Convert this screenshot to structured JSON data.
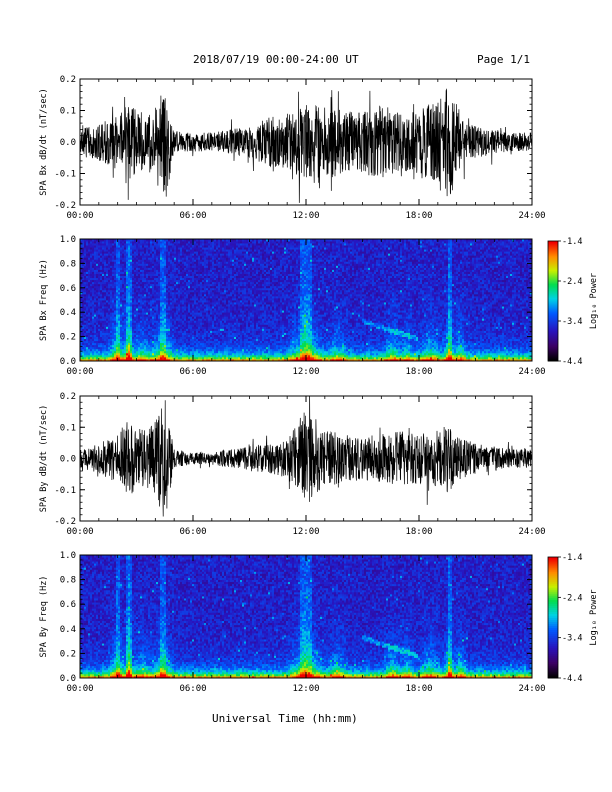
{
  "header": {
    "title": "2018/07/19  00:00-24:00 UT",
    "page": "Page 1/1"
  },
  "footer": {
    "xlabel": "Universal Time (hh:mm)"
  },
  "colorbar": {
    "label": "Log₁₀ Power",
    "ticks": [
      "-1.4",
      "-2.4",
      "-3.4",
      "-4.4"
    ],
    "range": [
      -4.4,
      -1.4
    ]
  },
  "chart_data": [
    {
      "type": "line",
      "name": "bx-timeseries",
      "ylabel": "SPA Bx dB/dt (nT/sec)",
      "ylim": [
        -0.2,
        0.2
      ],
      "yticks": [
        "0.2",
        "0.1",
        "0.0",
        "-0.1",
        "-0.2"
      ],
      "xlim_hours": [
        0,
        24
      ],
      "xticks": [
        "00:00",
        "06:00",
        "12:00",
        "18:00",
        "24:00"
      ],
      "amplitude_envelope": {
        "hours": [
          0,
          1,
          2,
          2.5,
          3,
          3.5,
          4,
          4.5,
          5,
          6,
          7,
          8,
          9,
          10,
          11,
          12,
          13,
          14,
          15,
          16,
          17,
          18,
          19,
          19.5,
          20,
          20.5,
          21,
          22,
          23,
          24
        ],
        "amplitude": [
          0.04,
          0.06,
          0.09,
          0.12,
          0.11,
          0.08,
          0.12,
          0.2,
          0.03,
          0.03,
          0.03,
          0.04,
          0.05,
          0.08,
          0.09,
          0.12,
          0.12,
          0.1,
          0.1,
          0.12,
          0.09,
          0.1,
          0.14,
          0.2,
          0.12,
          0.06,
          0.05,
          0.04,
          0.03,
          0.03
        ]
      }
    },
    {
      "type": "heatmap",
      "name": "bx-spectrogram",
      "ylabel": "SPA Bx Freq (Hz)",
      "ylim": [
        0,
        1.0
      ],
      "yticks": [
        "1.0",
        "0.8",
        "0.6",
        "0.4",
        "0.2",
        "0.0"
      ],
      "xlim_hours": [
        0,
        24
      ],
      "xticks": [
        "00:00",
        "06:00",
        "12:00",
        "18:00",
        "24:00"
      ],
      "zlim": [
        -4.4,
        -1.4
      ]
    },
    {
      "type": "line",
      "name": "by-timeseries",
      "ylabel": "SPA By dB/dt (nT/sec)",
      "ylim": [
        -0.2,
        0.2
      ],
      "yticks": [
        "0.2",
        "0.1",
        "0.0",
        "-0.1",
        "-0.2"
      ],
      "xlim_hours": [
        0,
        24
      ],
      "xticks": [
        "00:00",
        "06:00",
        "12:00",
        "18:00",
        "24:00"
      ],
      "amplitude_envelope": {
        "hours": [
          0,
          1,
          2,
          2.5,
          3,
          3.5,
          4,
          4.5,
          5,
          6,
          7,
          8,
          9,
          10,
          11,
          12,
          12.5,
          13,
          14,
          15,
          16,
          17,
          18,
          19,
          19.5,
          20,
          21,
          22,
          23,
          24
        ],
        "amplitude": [
          0.03,
          0.05,
          0.08,
          0.12,
          0.11,
          0.09,
          0.12,
          0.2,
          0.03,
          0.02,
          0.02,
          0.03,
          0.04,
          0.05,
          0.06,
          0.16,
          0.12,
          0.09,
          0.08,
          0.07,
          0.08,
          0.09,
          0.08,
          0.09,
          0.12,
          0.07,
          0.05,
          0.04,
          0.03,
          0.03
        ]
      }
    },
    {
      "type": "heatmap",
      "name": "by-spectrogram",
      "ylabel": "SPA By Freq (Hz)",
      "ylim": [
        0,
        1.0
      ],
      "yticks": [
        "1.0",
        "0.8",
        "0.6",
        "0.4",
        "0.2",
        "0.0"
      ],
      "xlim_hours": [
        0,
        24
      ],
      "xticks": [
        "00:00",
        "06:00",
        "12:00",
        "18:00",
        "24:00"
      ],
      "zlim": [
        -4.4,
        -1.4
      ]
    }
  ]
}
